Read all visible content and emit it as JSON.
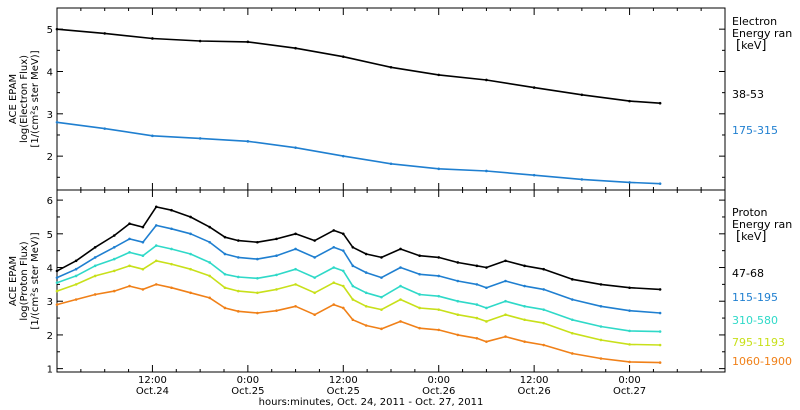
{
  "chart_data": [
    {
      "type": "line",
      "ylabel_lines": [
        "ACE EPAM",
        "log(Electron Flux)",
        "[1/(cm²s ster MeV)]"
      ],
      "ylim": [
        1.2,
        5.5
      ],
      "yticks": [
        "2",
        "3",
        "4",
        "5"
      ],
      "legend": {
        "title": "Electron",
        "subtitle": "Energy ran",
        "unit": "keV"
      },
      "x_days": [
        0,
        0.25,
        0.5,
        0.75,
        1.0,
        1.25,
        1.5,
        1.75,
        2.0,
        2.25,
        2.5,
        2.75,
        3.0,
        3.16
      ],
      "series": [
        {
          "name": "38-53",
          "color": "#000000",
          "values": [
            5.0,
            4.9,
            4.78,
            4.72,
            4.7,
            4.55,
            4.35,
            4.1,
            3.92,
            3.8,
            3.62,
            3.45,
            3.3,
            3.25
          ]
        },
        {
          "name": "175-315",
          "color": "#1f7fd0",
          "values": [
            2.8,
            2.65,
            2.48,
            2.42,
            2.35,
            2.2,
            2.0,
            1.82,
            1.7,
            1.65,
            1.55,
            1.45,
            1.38,
            1.35
          ]
        }
      ]
    },
    {
      "type": "line",
      "ylabel_lines": [
        "ACE EPAM",
        "log(Proton Flux)",
        "[1/(cm²s ster MeV)]"
      ],
      "ylim": [
        0.9,
        6.3
      ],
      "yticks": [
        "1",
        "2",
        "3",
        "4",
        "5",
        "6"
      ],
      "legend": {
        "title": "Proton",
        "subtitle": "Energy ran",
        "unit": "keV"
      },
      "x_days": [
        0,
        0.1,
        0.2,
        0.3,
        0.38,
        0.45,
        0.52,
        0.6,
        0.7,
        0.8,
        0.88,
        0.95,
        1.05,
        1.15,
        1.25,
        1.35,
        1.45,
        1.5,
        1.55,
        1.62,
        1.7,
        1.8,
        1.9,
        2.0,
        2.1,
        2.2,
        2.25,
        2.35,
        2.45,
        2.55,
        2.7,
        2.85,
        3.0,
        3.16
      ],
      "series": [
        {
          "name": "47-68",
          "color": "#000000",
          "values": [
            3.9,
            4.2,
            4.6,
            4.95,
            5.3,
            5.2,
            5.8,
            5.7,
            5.5,
            5.2,
            4.9,
            4.8,
            4.75,
            4.85,
            5.0,
            4.8,
            5.1,
            5.0,
            4.6,
            4.4,
            4.3,
            4.55,
            4.35,
            4.3,
            4.15,
            4.05,
            4.0,
            4.2,
            4.05,
            3.95,
            3.65,
            3.5,
            3.4,
            3.35
          ]
        },
        {
          "name": "115-195",
          "color": "#1f7fd0",
          "values": [
            3.7,
            3.95,
            4.3,
            4.6,
            4.85,
            4.75,
            5.25,
            5.15,
            5.0,
            4.75,
            4.4,
            4.3,
            4.25,
            4.35,
            4.55,
            4.3,
            4.6,
            4.5,
            4.05,
            3.85,
            3.7,
            4.0,
            3.8,
            3.75,
            3.6,
            3.5,
            3.4,
            3.6,
            3.45,
            3.35,
            3.05,
            2.85,
            2.72,
            2.65
          ]
        },
        {
          "name": "310-580",
          "color": "#2fd9c8",
          "values": [
            3.55,
            3.75,
            4.05,
            4.25,
            4.45,
            4.35,
            4.65,
            4.55,
            4.4,
            4.15,
            3.8,
            3.72,
            3.68,
            3.78,
            3.95,
            3.7,
            4.0,
            3.9,
            3.45,
            3.25,
            3.12,
            3.45,
            3.2,
            3.15,
            3.0,
            2.9,
            2.8,
            3.0,
            2.85,
            2.75,
            2.45,
            2.25,
            2.12,
            2.1
          ]
        },
        {
          "name": "795-1193",
          "color": "#c8e01a",
          "values": [
            3.3,
            3.5,
            3.75,
            3.9,
            4.05,
            3.95,
            4.2,
            4.1,
            3.95,
            3.75,
            3.4,
            3.3,
            3.25,
            3.35,
            3.5,
            3.25,
            3.55,
            3.45,
            3.05,
            2.85,
            2.75,
            3.05,
            2.8,
            2.75,
            2.6,
            2.5,
            2.4,
            2.6,
            2.45,
            2.35,
            2.05,
            1.85,
            1.72,
            1.7
          ]
        },
        {
          "name": "1060-1900",
          "color": "#f08018",
          "values": [
            2.9,
            3.05,
            3.2,
            3.3,
            3.45,
            3.35,
            3.5,
            3.4,
            3.25,
            3.1,
            2.8,
            2.7,
            2.65,
            2.72,
            2.85,
            2.6,
            2.9,
            2.8,
            2.45,
            2.28,
            2.18,
            2.4,
            2.2,
            2.15,
            2.0,
            1.9,
            1.8,
            1.95,
            1.8,
            1.7,
            1.45,
            1.3,
            1.2,
            1.18
          ]
        }
      ]
    }
  ],
  "x_axis": {
    "ticks": [
      {
        "day": 0.5,
        "time": "12:00",
        "date": "Oct.24"
      },
      {
        "day": 1.0,
        "time": "0:00",
        "date": "Oct.25"
      },
      {
        "day": 1.5,
        "time": "12:00",
        "date": "Oct.25"
      },
      {
        "day": 2.0,
        "time": "0:00",
        "date": "Oct.26"
      },
      {
        "day": 2.5,
        "time": "12:00",
        "date": "Oct.26"
      },
      {
        "day": 3.0,
        "time": "0:00",
        "date": "Oct.27"
      }
    ],
    "label": "hours:minutes, Oct. 24, 2011 - Oct. 27, 2011",
    "range_days": [
      0,
      3.5
    ]
  }
}
